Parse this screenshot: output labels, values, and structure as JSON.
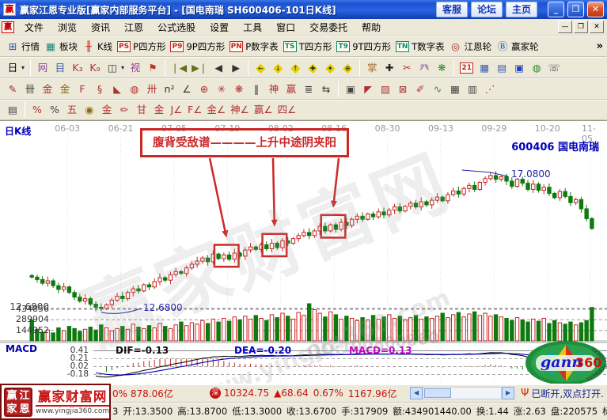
{
  "window": {
    "title": "赢家江恩专业版[赢家内部服务平台] - [国电南瑞  SH600406-101日K线]",
    "app_icon_glyph": "赢",
    "buttons": [
      {
        "name": "kefu",
        "label": "客服"
      },
      {
        "name": "luntan",
        "label": "论坛"
      },
      {
        "name": "zhuye",
        "label": "主页"
      }
    ],
    "min_glyph": "_",
    "max_glyph": "❐",
    "close_glyph": "✕"
  },
  "menu": {
    "logo_glyph": "赢",
    "items": [
      "文件",
      "浏览",
      "资讯",
      "江恩",
      "公式选股",
      "设置",
      "工具",
      "窗口",
      "交易委托",
      "帮助"
    ],
    "mdi_buttons": [
      "—",
      "❐",
      "✕"
    ]
  },
  "toolbar1": {
    "overflow_glyph": "»",
    "buttons": [
      {
        "name": "quotes",
        "glyph": "⊞",
        "color": "#2255aa",
        "label": "行情"
      },
      {
        "name": "sectors",
        "glyph": "▦",
        "color": "#11887a",
        "label": "板块"
      },
      {
        "name": "kline",
        "glyph": "╫",
        "color": "#cc2222",
        "label": "K线"
      },
      {
        "name": "p-square",
        "glyph": "PS",
        "color": "#cc2222",
        "boxed": true,
        "label": "P四方形"
      },
      {
        "name": "9p-square",
        "glyph": "P9",
        "color": "#cc2222",
        "boxed": true,
        "label": "9P四方形"
      },
      {
        "name": "p-table",
        "glyph": "PN",
        "color": "#cc2222",
        "boxed": true,
        "label": "P数字表"
      },
      {
        "name": "t-square",
        "glyph": "TS",
        "color": "#0a8a6a",
        "boxed": true,
        "label": "T四方形"
      },
      {
        "name": "9t-square",
        "glyph": "T9",
        "color": "#0a8a6a",
        "boxed": true,
        "label": "9T四方形"
      },
      {
        "name": "t-table",
        "glyph": "TN",
        "color": "#0a8a6a",
        "boxed": true,
        "label": "T数字表"
      },
      {
        "name": "gann-wheel",
        "glyph": "◎",
        "color": "#aa2222",
        "label": "江恩轮"
      },
      {
        "name": "winner-wheel",
        "glyph": "Ⓑ",
        "color": "#2255aa",
        "label": "赢家轮"
      }
    ]
  },
  "toolbar2": {
    "groups": [
      {
        "items": [
          {
            "name": "period-day-dropdown",
            "glyph": "日",
            "color": "#000",
            "caret": true
          }
        ]
      },
      {
        "items": [
          {
            "name": "net-chart-icon",
            "glyph": "网",
            "color": "#8a4a9a"
          },
          {
            "name": "info-doc-icon",
            "glyph": "目",
            "color": "#3a58b0"
          },
          {
            "name": "k3-chart-icon",
            "glyph": "K₃",
            "color": "#b03030"
          },
          {
            "name": "k9-chart-icon",
            "glyph": "K₉",
            "color": "#b03030"
          },
          {
            "name": "candle-style-icon",
            "glyph": "◫",
            "color": "#333",
            "caret": true
          },
          {
            "name": "pattern-view-icon",
            "glyph": "视",
            "color": "#9a3a9a"
          },
          {
            "name": "flag-icon",
            "glyph": "⚑",
            "color": "#c03020"
          }
        ]
      },
      {
        "items": [
          {
            "name": "first-icon",
            "glyph": "❘◀",
            "color": "#6b6b1f"
          },
          {
            "name": "last-icon",
            "glyph": "▶❘",
            "color": "#6b6b1f"
          },
          {
            "name": "prev-icon",
            "glyph": "◀",
            "color": "#333"
          },
          {
            "name": "next-icon",
            "glyph": "▶",
            "color": "#333"
          }
        ]
      },
      {
        "items": [
          {
            "name": "diamond-left-icon",
            "glyph": "◆",
            "overlay": "←"
          },
          {
            "name": "diamond-down-icon",
            "glyph": "◆",
            "overlay": "↓"
          },
          {
            "name": "diamond-up-icon",
            "glyph": "◆",
            "overlay": "↑"
          },
          {
            "name": "diamond-cross-icon",
            "glyph": "◆",
            "overlay": "✚"
          },
          {
            "name": "diamond-star-icon",
            "glyph": "◆",
            "overlay": "✦"
          },
          {
            "name": "diamond-target-icon",
            "glyph": "◆",
            "overlay": "⊕"
          }
        ]
      },
      {
        "items": [
          {
            "name": "hand-tool-icon",
            "glyph": "掌",
            "color": "#b07030"
          },
          {
            "name": "crosshair-tool-icon",
            "glyph": "✚",
            "color": "#222"
          },
          {
            "name": "scissors-tool-icon",
            "glyph": "✂",
            "color": "#b03030"
          },
          {
            "name": "measure-tool-icon",
            "glyph": "癶",
            "color": "#8a4a9a"
          },
          {
            "name": "leaf-tool-icon",
            "glyph": "❋",
            "color": "#2a8a2a"
          }
        ]
      },
      {
        "items": [
          {
            "name": "calendar-icon",
            "glyph": "21",
            "color": "#c02020",
            "boxed": true
          },
          {
            "name": "calculator-icon",
            "glyph": "▦",
            "color": "#3a58b0"
          },
          {
            "name": "notebook-icon",
            "glyph": "▤",
            "color": "#3a58b0"
          },
          {
            "name": "save-icon",
            "glyph": "▣",
            "color": "#2040c0"
          },
          {
            "name": "web-icon",
            "glyph": "◍",
            "color": "#2a8a2a"
          },
          {
            "name": "phone-icon",
            "glyph": "☏",
            "color": "#555"
          }
        ]
      }
    ]
  },
  "toolbar3": {
    "groups": [
      {
        "items": [
          {
            "name": "brush-tool-icon",
            "glyph": "✎",
            "color": "#b03030"
          },
          {
            "name": "comb-grid-icon",
            "glyph": "卌",
            "color": "#444"
          },
          {
            "name": "gold-gate-icon",
            "glyph": "金",
            "color": "#b03030"
          },
          {
            "name": "gold-gate2-icon",
            "glyph": "金",
            "color": "#8a6a10"
          },
          {
            "name": "f-gate-icon",
            "glyph": "F",
            "color": "#b03030"
          },
          {
            "name": "spiral-tool-icon",
            "glyph": "§",
            "color": "#b03030"
          },
          {
            "name": "dart-tool-icon",
            "glyph": "◣",
            "color": "#b03030"
          },
          {
            "name": "circle-grid-icon",
            "glyph": "◍",
            "color": "#b03030"
          },
          {
            "name": "ruler-comb-icon",
            "glyph": "卅",
            "color": "#b03030"
          },
          {
            "name": "n2-tool-icon",
            "glyph": "n²",
            "color": "#333"
          },
          {
            "name": "angle-tool-icon",
            "glyph": "∠",
            "color": "#333"
          },
          {
            "name": "compass-tool-icon",
            "glyph": "⊕",
            "color": "#b03030"
          },
          {
            "name": "star-tool-icon",
            "glyph": "✳",
            "color": "#b03030"
          },
          {
            "name": "web-grid-icon",
            "glyph": "❋",
            "color": "#b03030"
          },
          {
            "name": "tick-marks-icon",
            "glyph": "‖",
            "color": "#333"
          },
          {
            "name": "shen-tool-icon",
            "glyph": "神",
            "color": "#b03030"
          },
          {
            "name": "ying-tool-icon",
            "glyph": "赢",
            "color": "#b03030"
          },
          {
            "name": "abacus-tool-icon",
            "glyph": "≣",
            "color": "#333"
          },
          {
            "name": "span-arrows-icon",
            "glyph": "⇆",
            "color": "#333"
          }
        ]
      },
      {
        "items": [
          {
            "name": "frame-tool-icon",
            "glyph": "▣",
            "color": "#444"
          },
          {
            "name": "fan-lines-icon",
            "glyph": "◤",
            "color": "#b03030"
          },
          {
            "name": "hatch-box-icon",
            "glyph": "▨",
            "color": "#b03030"
          },
          {
            "name": "net-box-icon",
            "glyph": "⊠",
            "color": "#b03030"
          },
          {
            "name": "pencil-tool-icon",
            "glyph": "✐",
            "color": "#b03030"
          },
          {
            "name": "wave-tool-icon",
            "glyph": "∿",
            "color": "#2a8a2a"
          },
          {
            "name": "table-a-icon",
            "glyph": "▦",
            "color": "#444"
          },
          {
            "name": "table-b-icon",
            "glyph": "▥",
            "color": "#444"
          },
          {
            "name": "slash-lines-icon",
            "glyph": "⋰",
            "color": "#b03030"
          }
        ]
      }
    ]
  },
  "toolbar4": {
    "groups": [
      {
        "items": [
          {
            "name": "legend-panel-icon",
            "glyph": "▤",
            "color": "#444"
          }
        ]
      },
      {
        "items": [
          {
            "name": "fire-percent-icon",
            "glyph": "%",
            "color": "#b03030"
          },
          {
            "name": "percent-icon",
            "glyph": "%",
            "color": "#444"
          },
          {
            "name": "five-tool-icon",
            "glyph": "五",
            "color": "#b03030"
          },
          {
            "name": "gold-coin-icon",
            "glyph": "◉",
            "color": "#8a6a10"
          },
          {
            "name": "gold-line-icon",
            "glyph": "金",
            "color": "#b03030"
          },
          {
            "name": "candle-pen-icon",
            "glyph": "✏",
            "color": "#b03030"
          },
          {
            "name": "gan-tool-icon",
            "glyph": "甘",
            "color": "#b03030"
          },
          {
            "name": "gold-angle-base-icon",
            "glyph": "金",
            "color": "#b03030"
          },
          {
            "name": "j-angle-icon",
            "glyph": "J∠",
            "color": "#b03030"
          },
          {
            "name": "f-angle-icon",
            "glyph": "F∠",
            "color": "#b03030"
          },
          {
            "name": "gold-angle-icon",
            "glyph": "金∠",
            "color": "#b03030"
          },
          {
            "name": "shen-angle-icon",
            "glyph": "神∠",
            "color": "#b03030"
          },
          {
            "name": "ying-angle-icon",
            "glyph": "赢∠",
            "color": "#b03030"
          },
          {
            "name": "si-angle-icon",
            "glyph": "四∠",
            "color": "#b03030"
          }
        ]
      }
    ]
  },
  "chart": {
    "pane_label": "日K线",
    "symbol_label": "600406 国电南瑞",
    "peak_price": "17.0800",
    "low_price_note": "12.6800",
    "left_price_tick": "12.6800",
    "annotation": "腹背受敌谱————上升中途阴夹阳",
    "volume_ticks": [
      "434856",
      "289904",
      "144952"
    ],
    "macd": {
      "label": "MACD",
      "ticks": [
        "0.41",
        "0.21",
        "0.02",
        "-0.18"
      ],
      "legend": [
        {
          "text": "DIF=-0.13",
          "color": "#111111"
        },
        {
          "text": "DEA=-0.20",
          "color": "#0000cc"
        },
        {
          "text": "MACD=0.13",
          "color": "#cc00cc"
        }
      ]
    },
    "watermarks": [
      "赢家财富网",
      "www.yingjia360.com",
      "QQ:100800860"
    ]
  },
  "chart_data": {
    "type": "candlestick+volume+macd",
    "title": "国电南瑞 SH600406 日K线",
    "x_labels": [
      "06-03",
      "06-21",
      "07-05",
      "07-19",
      "08-02",
      "08-16",
      "08-30",
      "09-13",
      "09-29",
      "10-20",
      "11-05"
    ],
    "price_levels": {
      "peak": 17.08,
      "low": 12.68
    },
    "ylim_price": [
      12.3,
      18.4
    ],
    "volume_ylim": [
      0,
      520000
    ],
    "macd_ticks": [
      0.41,
      0.21,
      0.02,
      -0.18
    ],
    "closes": [
      13.7,
      13.62,
      13.5,
      13.58,
      13.42,
      13.3,
      13.38,
      13.2,
      13.05,
      12.92,
      13.0,
      12.82,
      12.72,
      12.68,
      12.8,
      12.95,
      13.08,
      13.0,
      13.2,
      13.32,
      13.25,
      13.45,
      13.38,
      13.55,
      13.68,
      13.6,
      13.78,
      13.88,
      13.82,
      14.0,
      14.12,
      14.22,
      14.32,
      14.2,
      14.45,
      14.3,
      14.42,
      14.28,
      14.48,
      14.38,
      14.58,
      14.68,
      14.6,
      14.75,
      14.62,
      14.8,
      14.66,
      14.88,
      14.8,
      14.95,
      15.05,
      15.15,
      15.05,
      15.2,
      15.35,
      15.2,
      15.4,
      15.25,
      15.48,
      15.38,
      15.58,
      15.68,
      15.58,
      15.75,
      15.66,
      15.82,
      15.72,
      15.88,
      15.98,
      15.85,
      16.0,
      16.1,
      15.98,
      16.15,
      16.05,
      16.2,
      16.3,
      16.18,
      16.38,
      16.5,
      16.4,
      16.58,
      16.68,
      16.55,
      16.78,
      16.9,
      17.0,
      16.88,
      16.96,
      16.82,
      16.65,
      16.88,
      16.75,
      16.55,
      16.72,
      16.52,
      16.62,
      16.42,
      16.28,
      16.48,
      16.32,
      16.12,
      16.22,
      15.92,
      15.6,
      15.28
    ],
    "volumes_k": [
      290,
      160,
      120,
      150,
      110,
      180,
      140,
      200,
      170,
      130,
      160,
      190,
      150,
      220,
      180,
      140,
      170,
      200,
      160,
      230,
      190,
      170,
      210,
      180,
      240,
      200,
      170,
      220,
      260,
      210,
      250,
      230,
      280,
      240,
      300,
      260,
      310,
      270,
      330,
      290,
      340,
      300,
      350,
      310,
      280,
      360,
      320,
      380,
      340,
      300,
      390,
      350,
      520,
      430,
      380,
      330,
      400,
      360,
      300,
      340,
      310,
      280,
      320,
      290,
      350,
      300,
      330,
      360,
      310,
      340,
      290,
      320,
      350,
      300,
      330,
      310,
      340,
      380,
      320,
      360,
      390,
      330,
      370,
      400,
      350,
      380,
      340,
      360,
      330,
      310,
      280,
      320,
      290,
      260,
      300,
      270,
      310,
      240,
      280,
      250,
      230,
      260,
      220,
      250,
      280,
      460
    ],
    "pattern_boxes": [
      {
        "from": 35,
        "to": 38
      },
      {
        "from": 44,
        "to": 47
      },
      {
        "from": 55,
        "to": 58
      }
    ],
    "arrow_starts_x": [
      265,
      345,
      428
    ]
  },
  "statusbar1": {
    "left_clipped": "0% 878.06亿",
    "sz_badge": "深",
    "sz_index": "10324.75",
    "up_arrow": "▲",
    "sz_change": "68.64",
    "sz_pct": "0.67%",
    "sz_amount": "1167.96亿",
    "scroll_left_glyph": "◀",
    "scroll_right_glyph": "▶",
    "antenna_glyph": "Ψ",
    "link_text": "已断开,双点打开."
  },
  "statusbar2": {
    "prefix": "3",
    "fields": [
      {
        "label": "开",
        "value": "13.3500"
      },
      {
        "label": "高",
        "value": "13.8700"
      },
      {
        "label": "低",
        "value": "13.3000"
      },
      {
        "label": "收",
        "value": "13.6700"
      },
      {
        "label": "手",
        "value": "317909"
      },
      {
        "label": "额",
        "value": "434901440.00"
      },
      {
        "label": "换",
        "value": "1.44"
      },
      {
        "label": "涨",
        "value": "2.63"
      },
      {
        "label": "盘",
        "value": "220575"
      },
      {
        "label": "标",
        "value": ""
      }
    ]
  },
  "branding": {
    "site_name": "赢家财富网",
    "site_url": "www.yingjia360.com",
    "seal_chars": [
      "赢",
      "江",
      "家",
      "恩"
    ],
    "gann_text": "gann",
    "gann_suffix": "360",
    "ring_digits": "1234567890"
  }
}
